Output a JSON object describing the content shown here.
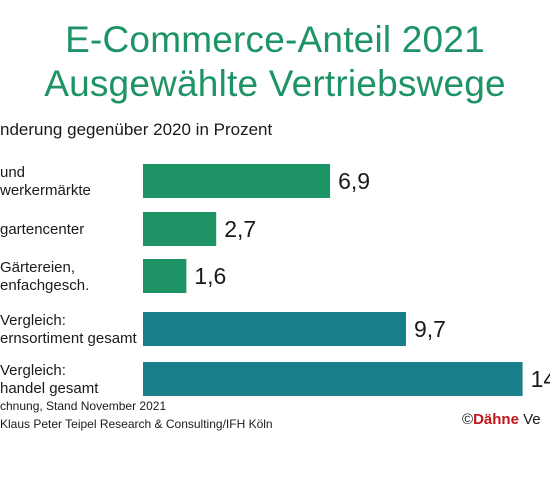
{
  "header": {
    "title_line1": "E-Commerce-Anteil 2021",
    "title_line2": "Ausgewählte Vertriebswege",
    "subtitle": "nderung gegenüber 2020 in Prozent"
  },
  "colors": {
    "title": "#1e9466",
    "bar_green": "#1e9466",
    "bar_teal": "#1a7f8b",
    "brand_red": "#c0151b"
  },
  "chart_data": {
    "type": "bar",
    "orientation": "horizontal",
    "title": "E-Commerce-Anteil 2021 Ausgewählte Vertriebswege",
    "subtitle": "nderung gegenüber 2020 in Prozent",
    "categories": [
      [
        "und",
        "werkermärkte"
      ],
      [
        "gartencenter"
      ],
      [
        "Gärtereien,",
        "enfachgesch."
      ],
      [
        "Vergleich:",
        "ernsortiment gesamt"
      ],
      [
        "Vergleich:",
        "handel gesamt"
      ]
    ],
    "values": [
      6.9,
      2.7,
      1.6,
      9.7,
      14
    ],
    "value_labels": [
      "6,9",
      "2,7",
      "1,6",
      "9,7",
      "14"
    ],
    "bar_colors": [
      "#1e9466",
      "#1e9466",
      "#1e9466",
      "#1a7f8b",
      "#1a7f8b"
    ],
    "xlim": [
      0,
      14.2
    ],
    "grid": false,
    "legend": "none"
  },
  "footer": {
    "line1": "chnung, Stand November 2021",
    "line2": "Klaus Peter Teipel Research & Consulting/IFH Köln",
    "copyright_symbol": "©",
    "copyright_brand": "Dähne",
    "copyright_rest": " Ve"
  }
}
